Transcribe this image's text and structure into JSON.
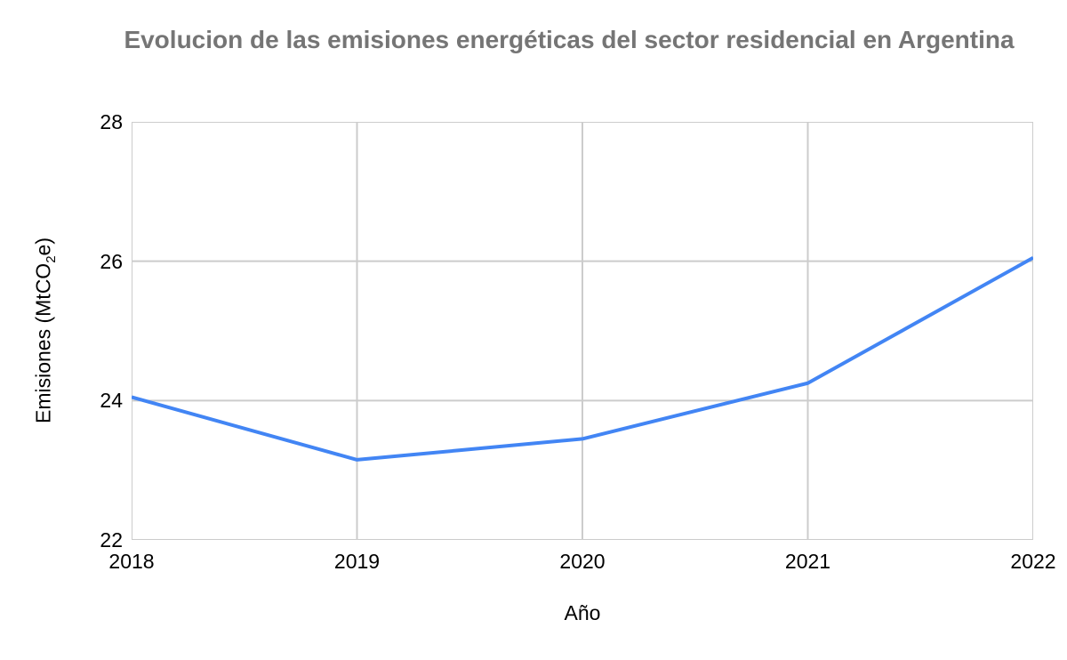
{
  "chart_data": {
    "type": "line",
    "title": "Evolucion de las emisiones energéticas del sector residencial en Argentina",
    "xlabel": "Año",
    "ylabel": "Emisiones (MtCO₂e)",
    "ylabel_parts": {
      "pre": "Emisiones (MtCO",
      "sub": "2",
      "post": "e)"
    },
    "categories": [
      "2018",
      "2019",
      "2020",
      "2021",
      "2022"
    ],
    "values": [
      24.05,
      23.15,
      23.45,
      24.25,
      26.05
    ],
    "ylim": [
      22,
      28
    ],
    "yticks": [
      22,
      24,
      26,
      28
    ],
    "grid": true,
    "legend_position": "none",
    "colors": {
      "line": "#4285f4",
      "grid": "#cccccc",
      "title_text": "#757575",
      "axis_text": "#000000",
      "background": "#ffffff"
    }
  }
}
